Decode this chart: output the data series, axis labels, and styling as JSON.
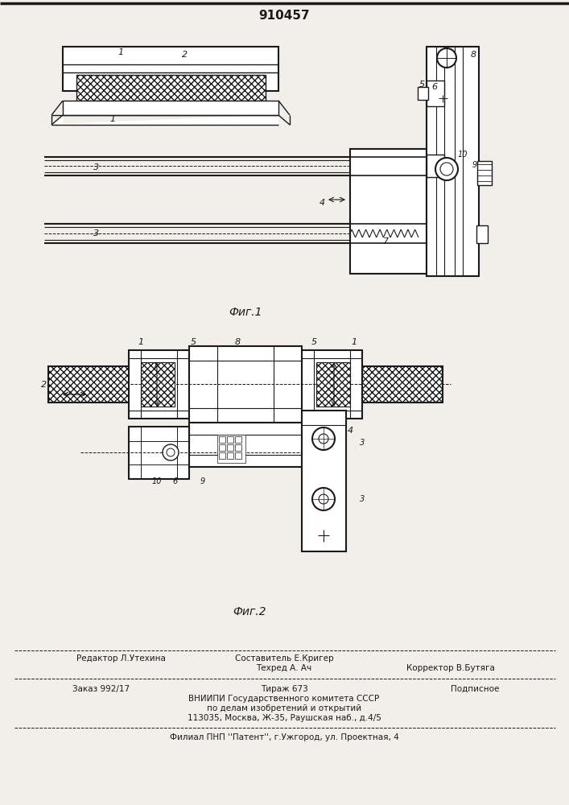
{
  "title_number": "910457",
  "fig1_caption": "Фиг.1",
  "fig2_caption": "Фиг.2",
  "bg_color": "#f2efea",
  "line_color": "#1a1a1a",
  "fig_width": 7.07,
  "fig_height": 10.0
}
